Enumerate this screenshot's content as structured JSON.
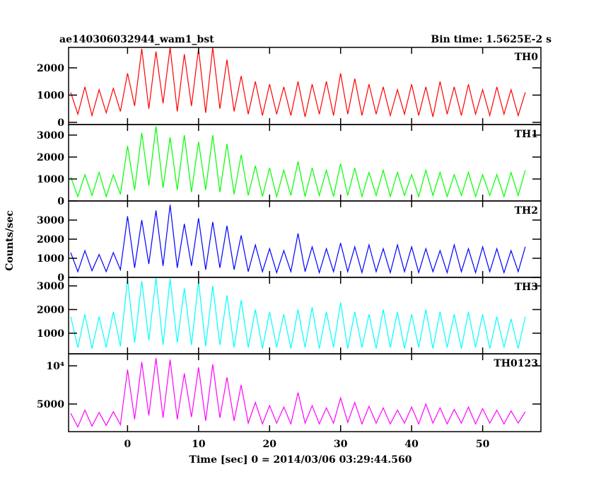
{
  "chart_data": {
    "type": "line",
    "title": "ae140306032944_wam1_bst",
    "subtitle": "Bin time: 1.5625E-2 s",
    "xlabel": "Time [sec] 0 = 2014/03/06 03:29:44.560",
    "ylabel": "Counts/sec",
    "xlim": [
      -8.3,
      58.2
    ],
    "xticks": [
      0,
      10,
      20,
      30,
      40,
      50
    ],
    "x": [
      -8,
      -7,
      -6,
      -5,
      -4,
      -3,
      -2,
      -1,
      0,
      1,
      2,
      3,
      4,
      5,
      6,
      7,
      8,
      9,
      10,
      11,
      12,
      13,
      14,
      15,
      16,
      17,
      18,
      19,
      20,
      21,
      22,
      23,
      24,
      25,
      26,
      27,
      28,
      29,
      30,
      31,
      32,
      33,
      34,
      35,
      36,
      37,
      38,
      39,
      40,
      41,
      42,
      43,
      44,
      45,
      46,
      47,
      48,
      49,
      50,
      51,
      52,
      53,
      54,
      55,
      56
    ],
    "panels": [
      {
        "name": "TH0",
        "color": "#ff0000",
        "ylim": [
          -80,
          2750
        ],
        "yticks": [
          0,
          1000,
          2000
        ],
        "values": [
          1100,
          300,
          1300,
          250,
          1200,
          350,
          1250,
          400,
          1800,
          600,
          2700,
          500,
          2600,
          700,
          2750,
          400,
          2500,
          600,
          2700,
          350,
          2750,
          500,
          2300,
          400,
          1700,
          300,
          1500,
          250,
          1400,
          300,
          1300,
          250,
          1500,
          200,
          1400,
          300,
          1500,
          250,
          1800,
          300,
          1600,
          250,
          1400,
          300,
          1300,
          250,
          1200,
          300,
          1400,
          250,
          1300,
          200,
          1500,
          300,
          1300,
          250,
          1400,
          300,
          1200,
          250,
          1300,
          300,
          1200,
          250,
          1100
        ]
      },
      {
        "name": "TH1",
        "color": "#00ff00",
        "ylim": [
          0,
          3480
        ],
        "yticks": [
          0,
          1000,
          2000,
          3000
        ],
        "values": [
          1100,
          200,
          1200,
          250,
          1300,
          200,
          1200,
          300,
          2500,
          500,
          3100,
          700,
          3400,
          600,
          2900,
          500,
          3000,
          400,
          2700,
          500,
          3000,
          400,
          2600,
          300,
          2100,
          250,
          1600,
          200,
          1500,
          200,
          1400,
          250,
          1800,
          200,
          1500,
          250,
          1400,
          200,
          1700,
          250,
          1500,
          200,
          1300,
          250,
          1400,
          200,
          1300,
          250,
          1200,
          200,
          1400,
          250,
          1300,
          200,
          1200,
          250,
          1300,
          200,
          1200,
          250,
          1200,
          200,
          1300,
          250,
          1400
        ]
      },
      {
        "name": "TH2",
        "color": "#0000ff",
        "ylim": [
          0,
          4000
        ],
        "yticks": [
          0,
          1000,
          2000,
          3000
        ],
        "values": [
          1300,
          300,
          1400,
          350,
          1200,
          300,
          1300,
          400,
          3200,
          500,
          3000,
          700,
          3500,
          600,
          3800,
          500,
          2800,
          600,
          3100,
          400,
          2900,
          500,
          2700,
          400,
          2200,
          300,
          1700,
          300,
          1500,
          250,
          1400,
          300,
          2300,
          300,
          1600,
          250,
          1500,
          300,
          1800,
          300,
          1600,
          250,
          1700,
          300,
          1500,
          250,
          1700,
          300,
          1600,
          250,
          1500,
          300,
          1400,
          250,
          1700,
          300,
          1500,
          250,
          1600,
          300,
          1500,
          250,
          1400,
          300,
          1600
        ]
      },
      {
        "name": "TH3",
        "color": "#00ffff",
        "ylim": [
          130,
          3360
        ],
        "yticks": [
          1000,
          2000,
          3000
        ],
        "values": [
          1700,
          400,
          1800,
          350,
          1700,
          400,
          1900,
          450,
          3300,
          600,
          3200,
          700,
          3350,
          500,
          3300,
          600,
          2900,
          500,
          3200,
          450,
          3000,
          500,
          2600,
          400,
          2400,
          400,
          2000,
          350,
          1900,
          400,
          1800,
          350,
          2000,
          400,
          2100,
          350,
          1900,
          400,
          2300,
          350,
          1900,
          400,
          1800,
          350,
          2000,
          400,
          1900,
          350,
          1800,
          400,
          2000,
          350,
          1900,
          400,
          1800,
          350,
          1900,
          400,
          1800,
          350,
          1700,
          400,
          1600,
          350,
          1700
        ]
      },
      {
        "name": "TH0123",
        "color": "#ff00ff",
        "ylim": [
          1390,
          11570
        ],
        "yticks": [
          5000,
          {
            "value": 10000,
            "label": "10⁴"
          }
        ],
        "values": [
          3800,
          2000,
          4200,
          2100,
          3900,
          2200,
          4000,
          2300,
          9500,
          3000,
          10500,
          3500,
          11000,
          3200,
          10800,
          3000,
          9000,
          3300,
          9800,
          2800,
          10200,
          3200,
          8500,
          2800,
          7500,
          2500,
          5200,
          2400,
          4800,
          2500,
          4600,
          2400,
          6500,
          2500,
          4800,
          2400,
          4500,
          2500,
          5800,
          2600,
          5200,
          2400,
          4700,
          2500,
          4500,
          2400,
          4200,
          2500,
          4600,
          2400,
          5000,
          2500,
          4500,
          2400,
          4300,
          2500,
          4600,
          2400,
          4400,
          2500,
          4200,
          2400,
          4100,
          2500,
          4000
        ]
      }
    ]
  }
}
